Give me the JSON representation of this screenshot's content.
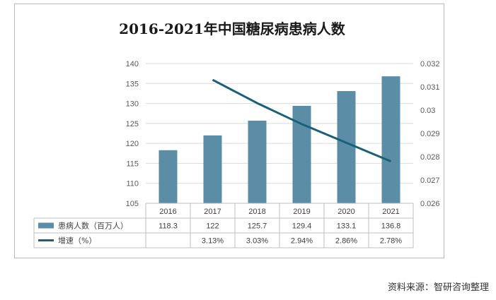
{
  "chart_data": {
    "type": "bar",
    "title": "2016-2021年中国糖尿病患病人数",
    "categories": [
      "2016",
      "2017",
      "2018",
      "2019",
      "2020",
      "2021"
    ],
    "series": [
      {
        "name": "患病人数（百万人）",
        "type": "bar",
        "axis": "left",
        "color": "#5b8ea6",
        "values": [
          118.3,
          122,
          125.7,
          129.4,
          133.1,
          136.8
        ],
        "value_labels": [
          "118.3",
          "122",
          "125.7",
          "129.4",
          "133.1",
          "136.8"
        ]
      },
      {
        "name": "增速（%）",
        "type": "line",
        "axis": "right",
        "color": "#1b5f78",
        "values": [
          null,
          0.0313,
          0.0303,
          0.0294,
          0.0286,
          0.0278
        ],
        "value_labels": [
          "",
          "3.13%",
          "3.03%",
          "2.94%",
          "2.86%",
          "2.78%"
        ]
      }
    ],
    "left_axis": {
      "min": 105,
      "max": 140,
      "step": 5,
      "ticks": [
        "105",
        "110",
        "115",
        "120",
        "125",
        "130",
        "135",
        "140"
      ]
    },
    "right_axis": {
      "min": 0.026,
      "max": 0.032,
      "step": 0.001,
      "ticks": [
        "0.026",
        "0.027",
        "0.028",
        "0.029",
        "0.03",
        "0.031",
        "0.032"
      ]
    },
    "grid": true,
    "legend": "data-table-below"
  },
  "source_text": "资料来源：智研咨询整理"
}
